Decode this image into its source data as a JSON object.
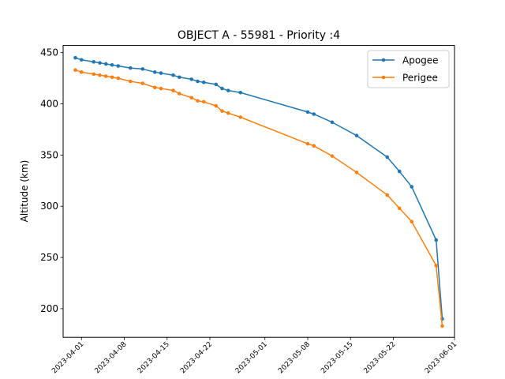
{
  "chart_data": {
    "type": "line",
    "title": "OBJECT A - 55981 - Priority :4",
    "xlabel": "",
    "ylabel": "Altitude (km)",
    "x_ticks": [
      "2023-04-01",
      "2023-04-08",
      "2023-04-15",
      "2023-04-22",
      "2023-05-01",
      "2023-05-08",
      "2023-05-15",
      "2023-05-22",
      "2023-06-01"
    ],
    "y_ticks": [
      200,
      250,
      300,
      350,
      400,
      450
    ],
    "xlim": [
      "2023-03-29",
      "2023-06-01"
    ],
    "ylim": [
      172,
      457
    ],
    "grid": false,
    "legend_position": "top-right",
    "x": [
      "2023-03-31",
      "2023-04-01",
      "2023-04-03",
      "2023-04-04",
      "2023-04-05",
      "2023-04-06",
      "2023-04-07",
      "2023-04-09",
      "2023-04-11",
      "2023-04-13",
      "2023-04-14",
      "2023-04-16",
      "2023-04-17",
      "2023-04-19",
      "2023-04-20",
      "2023-04-21",
      "2023-04-23",
      "2023-04-24",
      "2023-04-25",
      "2023-04-27",
      "2023-05-08",
      "2023-05-09",
      "2023-05-12",
      "2023-05-16",
      "2023-05-21",
      "2023-05-23",
      "2023-05-25",
      "2023-05-29",
      "2023-05-30"
    ],
    "series": [
      {
        "name": "Apogee",
        "color": "#1f77b4",
        "values": [
          445,
          443,
          441,
          440,
          439,
          438,
          437,
          435,
          434,
          431,
          430,
          428,
          426,
          424,
          422,
          421,
          419,
          415,
          413,
          411,
          392,
          390,
          382,
          369,
          348,
          334,
          319,
          267,
          190
        ]
      },
      {
        "name": "Perigee",
        "color": "#ff7f0e",
        "values": [
          433,
          431,
          429,
          428,
          427,
          426,
          425,
          422,
          420,
          416,
          415,
          413,
          410,
          406,
          403,
          402,
          398,
          393,
          391,
          387,
          361,
          359,
          349,
          333,
          311,
          298,
          285,
          242,
          183
        ]
      }
    ]
  }
}
